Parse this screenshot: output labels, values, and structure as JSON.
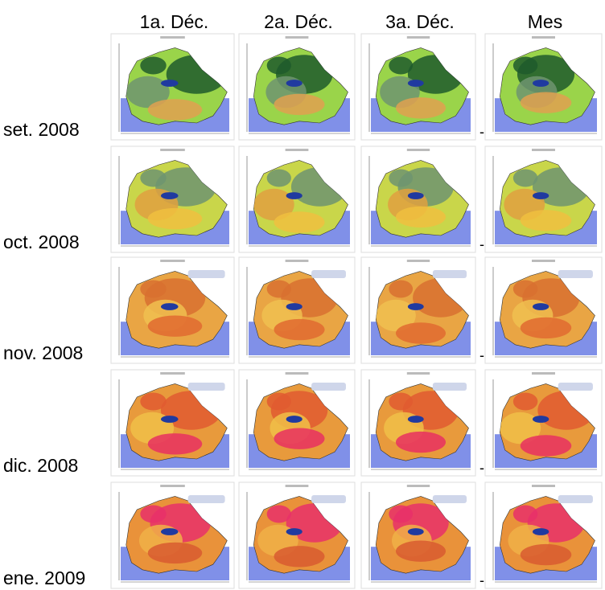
{
  "columns": [
    "1a. Déc.",
    "2a. Déc.",
    "3a. Déc.",
    "Mes"
  ],
  "rows": [
    {
      "label": "set. 2008",
      "separator": "-"
    },
    {
      "label": "oct. 2008",
      "separator": "-"
    },
    {
      "label": "nov. 2008",
      "separator": "-"
    },
    {
      "label": "dic. 2008",
      "separator": "-"
    },
    {
      "label": "ene. 2009",
      "separator": "-"
    }
  ]
}
